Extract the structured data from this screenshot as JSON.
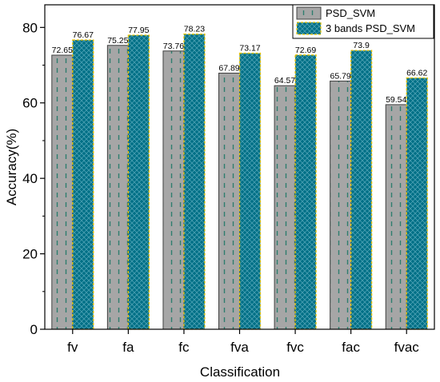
{
  "chart_data": {
    "type": "bar",
    "xlabel": "Classification",
    "ylabel": "Accuracy(%)",
    "ylim": [
      0,
      86
    ],
    "yticks": [
      0,
      20,
      40,
      60,
      80
    ],
    "categories": [
      "fv",
      "fa",
      "fc",
      "fva",
      "fvc",
      "fac",
      "fvac"
    ],
    "series": [
      {
        "name": "PSD_SVM",
        "values": [
          72.65,
          75.25,
          73.76,
          67.89,
          64.57,
          65.79,
          59.54
        ],
        "labels": [
          "72.65",
          "75.25",
          "73.76",
          "67.89",
          "64.57",
          "65.79",
          "59.54"
        ],
        "fill": "#a6a6a6",
        "pattern_color": "#2e7d6e",
        "edge": "#404040"
      },
      {
        "name": "3 bands PSD_SVM",
        "values": [
          76.67,
          77.95,
          78.23,
          73.17,
          72.69,
          73.9,
          66.62
        ],
        "labels": [
          "76.67",
          "77.95",
          "78.23",
          "73.17",
          "72.69",
          "73.9",
          "66.62"
        ],
        "fill": "#006f86",
        "pattern_color": "#4a9fb2",
        "edge": "#e8c200"
      }
    ],
    "legend": "top-right",
    "grid": false
  }
}
